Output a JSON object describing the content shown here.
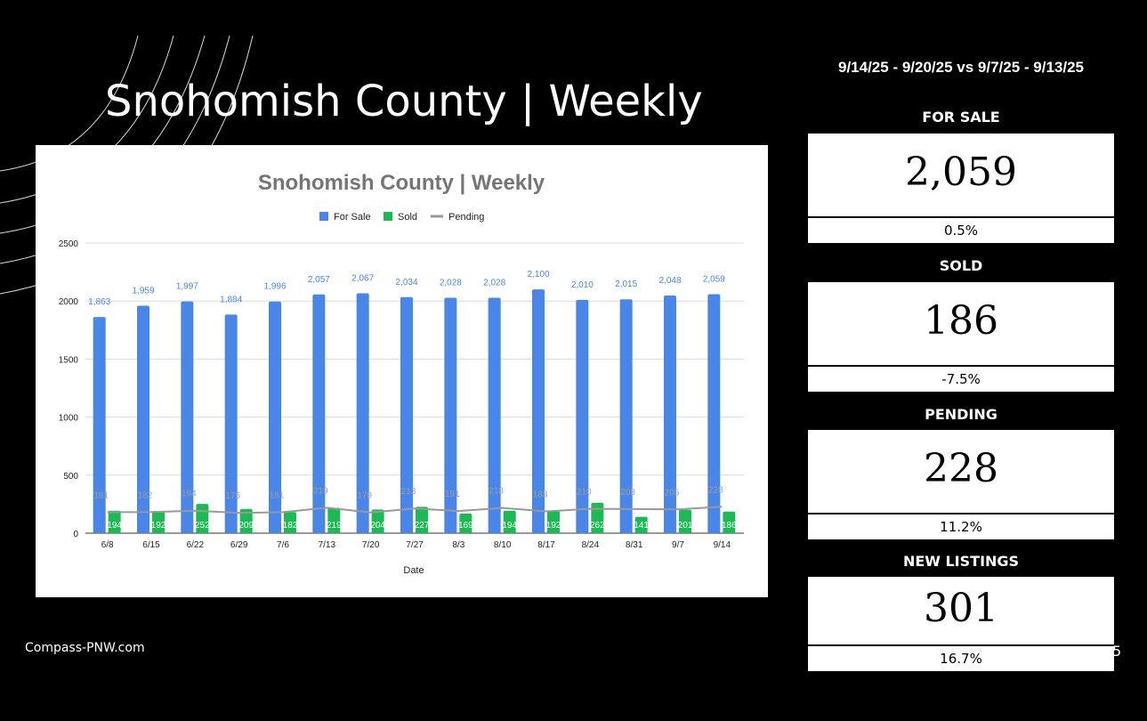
{
  "slide": {
    "title": "Snohomish County | Weekly",
    "footer": "Compass-PNW.com",
    "date_range": "9/14/25 - 9/20/25 vs 9/7/25 - 9/13/25",
    "page_number": "5"
  },
  "stats": [
    {
      "label": "FOR SALE",
      "value": "2,059",
      "change": "0.5%"
    },
    {
      "label": "SOLD",
      "value": "186",
      "change": "-7.5%"
    },
    {
      "label": "PENDING",
      "value": "228",
      "change": "11.2%"
    },
    {
      "label": "NEW LISTINGS",
      "value": "301",
      "change": "16.7%"
    }
  ],
  "colors": {
    "for_sale": "#4a86e8",
    "sold": "#1db954",
    "pending": "#999999",
    "title_gray": "#757575"
  },
  "chart_data": {
    "type": "bar",
    "title": "Snohomish County | Weekly",
    "xlabel": "Date",
    "ylabel": "",
    "ylim": [
      0,
      2500
    ],
    "yticks": [
      0,
      500,
      1000,
      1500,
      2000,
      2500
    ],
    "grid": true,
    "legend_position": "top-center",
    "categories": [
      "6/8",
      "6/15",
      "6/22",
      "6/29",
      "7/6",
      "7/13",
      "7/20",
      "7/27",
      "8/3",
      "8/10",
      "8/17",
      "8/24",
      "8/31",
      "9/7",
      "9/14"
    ],
    "series": [
      {
        "name": "For Sale",
        "type": "bar",
        "values": [
          1863,
          1959,
          1997,
          1884,
          1996,
          2057,
          2067,
          2034,
          2028,
          2028,
          2100,
          2010,
          2015,
          2048,
          2059
        ]
      },
      {
        "name": "Sold",
        "type": "bar",
        "values": [
          194,
          192,
          252,
          209,
          182,
          219,
          204,
          227,
          169,
          194,
          192,
          262,
          141,
          201,
          186
        ]
      },
      {
        "name": "Pending",
        "type": "line",
        "values": [
          181,
          182,
          194,
          175,
          181,
          219,
          179,
          213,
          191,
          218,
          188,
          210,
          208,
          205,
          228
        ]
      }
    ]
  }
}
